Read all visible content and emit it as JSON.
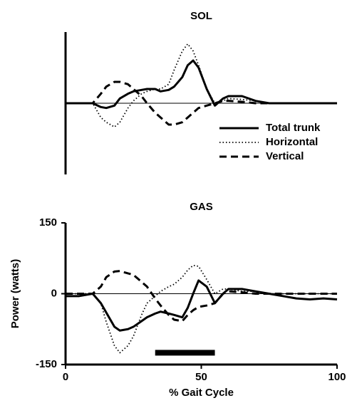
{
  "chart_data": [
    {
      "type": "line",
      "title": "SOL",
      "x": [
        0,
        5,
        10,
        13,
        15,
        18,
        20,
        23,
        25,
        28,
        30,
        33,
        35,
        38,
        40,
        43,
        45,
        47,
        49,
        52,
        55,
        58,
        60,
        65,
        70,
        75,
        80,
        85,
        90,
        95,
        100
      ],
      "xlim": [
        0,
        100
      ],
      "ylim": [
        -150,
        150
      ],
      "zero_line": true,
      "legend": "lower right",
      "series": [
        {
          "name": "Total trunk",
          "color": "#000000",
          "dash": "solid",
          "values": [
            0,
            0,
            0,
            -8,
            -10,
            -5,
            10,
            20,
            25,
            28,
            30,
            30,
            25,
            28,
            35,
            55,
            80,
            90,
            75,
            30,
            -5,
            10,
            15,
            15,
            5,
            0,
            0,
            0,
            0,
            0,
            0
          ]
        },
        {
          "name": "Horizontal",
          "color": "#000000",
          "dash": "dotted",
          "values": [
            0,
            0,
            0,
            -30,
            -40,
            -50,
            -40,
            -10,
            5,
            20,
            25,
            30,
            30,
            40,
            70,
            110,
            125,
            110,
            80,
            30,
            0,
            5,
            10,
            8,
            5,
            0,
            0,
            0,
            0,
            0,
            0
          ]
        },
        {
          "name": "Vertical",
          "color": "#000000",
          "dash": "dashed",
          "values": [
            0,
            0,
            0,
            20,
            35,
            45,
            45,
            40,
            30,
            15,
            0,
            -20,
            -30,
            -45,
            -45,
            -40,
            -30,
            -20,
            -10,
            -5,
            0,
            5,
            5,
            3,
            0,
            0,
            0,
            0,
            0,
            0,
            0
          ]
        }
      ]
    },
    {
      "type": "line",
      "title": "GAS",
      "xlabel": "% Gait Cycle",
      "ylabel": "Power (watts)",
      "x": [
        0,
        5,
        10,
        13,
        15,
        18,
        20,
        23,
        25,
        28,
        30,
        33,
        35,
        38,
        40,
        43,
        45,
        47,
        49,
        52,
        55,
        58,
        60,
        65,
        70,
        75,
        80,
        85,
        90,
        95,
        100
      ],
      "xlim": [
        0,
        100
      ],
      "xticks": [
        0,
        50,
        100
      ],
      "ylim": [
        -150,
        150
      ],
      "yticks": [
        -150,
        0,
        150
      ],
      "zero_line": true,
      "span_bar": {
        "x": [
          33,
          55
        ],
        "y": -125,
        "color": "#000000"
      },
      "series": [
        {
          "name": "Total trunk",
          "color": "#000000",
          "dash": "solid",
          "values": [
            -5,
            -5,
            0,
            -20,
            -40,
            -70,
            -78,
            -75,
            -70,
            -58,
            -50,
            -42,
            -38,
            -42,
            -45,
            -50,
            -30,
            0,
            28,
            15,
            -20,
            0,
            10,
            10,
            5,
            0,
            -5,
            -10,
            -12,
            -10,
            -12
          ]
        },
        {
          "name": "Horizontal",
          "color": "#000000",
          "dash": "dotted",
          "values": [
            0,
            0,
            0,
            -20,
            -60,
            -110,
            -125,
            -110,
            -90,
            -45,
            -20,
            -5,
            5,
            15,
            20,
            35,
            50,
            60,
            58,
            30,
            0,
            10,
            10,
            5,
            5,
            0,
            0,
            0,
            0,
            0,
            0
          ]
        },
        {
          "name": "Vertical",
          "color": "#000000",
          "dash": "dashed",
          "values": [
            0,
            0,
            0,
            15,
            35,
            47,
            48,
            43,
            40,
            25,
            15,
            -10,
            -25,
            -45,
            -55,
            -58,
            -45,
            -35,
            -28,
            -25,
            -20,
            0,
            5,
            3,
            0,
            0,
            0,
            0,
            0,
            0,
            0
          ]
        }
      ]
    }
  ]
}
